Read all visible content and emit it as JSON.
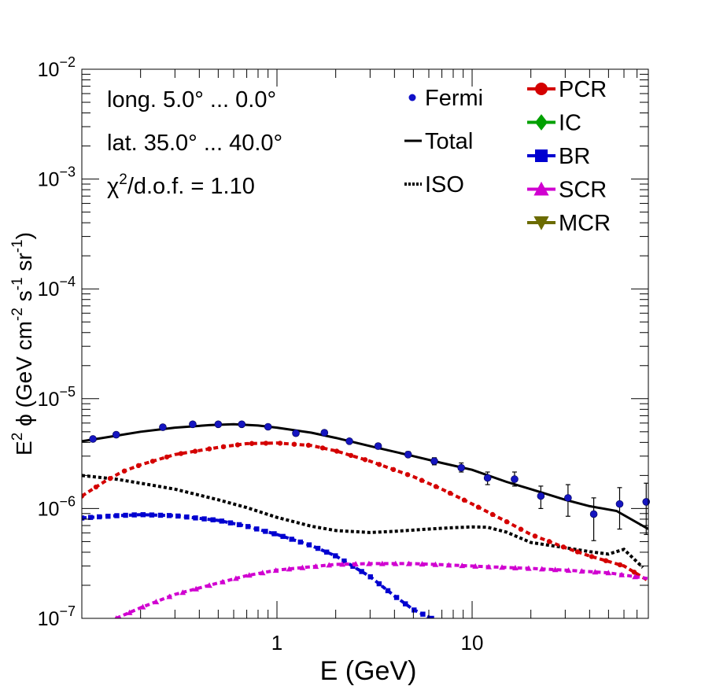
{
  "chart_data": {
    "type": "line",
    "xscale": "log",
    "yscale": "log",
    "xlim": [
      0.1,
      80
    ],
    "ylim": [
      1e-07,
      0.01
    ],
    "xlabel": "E (GeV)",
    "ylabel_main": "E",
    "ylabel_parts": [
      "2",
      " ϕ (GeV cm",
      "-2",
      " s",
      "-1",
      " sr",
      "-1",
      ")"
    ],
    "x_ticks": [
      {
        "value": 1,
        "label": "1"
      },
      {
        "value": 10,
        "label": "10"
      }
    ],
    "y_ticks": [
      {
        "value": 1e-07,
        "base": "10",
        "exp": "−7"
      },
      {
        "value": 1e-06,
        "base": "10",
        "exp": "−6"
      },
      {
        "value": 1e-05,
        "base": "10",
        "exp": "−5"
      },
      {
        "value": 0.0001,
        "base": "10",
        "exp": "−4"
      },
      {
        "value": 0.001,
        "base": "10",
        "exp": "−3"
      },
      {
        "value": 0.01,
        "base": "10",
        "exp": "−2"
      }
    ],
    "annotations": [
      {
        "text": "long. 5.0° ... 0.0°"
      },
      {
        "text": "lat. 35.0° ... 40.0°"
      },
      {
        "text_pre": "χ",
        "sup": "2",
        "text_post": "/d.o.f. = 1.10"
      }
    ],
    "legend_left": [
      {
        "name": "Fermi",
        "style": "dot",
        "color": "#1010c8"
      },
      {
        "name": "Total",
        "style": "line",
        "color": "#000000"
      },
      {
        "name": "ISO",
        "style": "dotted",
        "color": "#000000"
      }
    ],
    "legend_right": [
      {
        "name": "PCR",
        "marker": "circle",
        "color": "#d40000"
      },
      {
        "name": "IC",
        "marker": "diamond",
        "color": "#00a000"
      },
      {
        "name": "BR",
        "marker": "square",
        "color": "#0000d0"
      },
      {
        "name": "SCR",
        "marker": "triangle-up",
        "color": "#d000d0"
      },
      {
        "name": "MCR",
        "marker": "triangle-down",
        "color": "#6b6b00"
      }
    ],
    "fermi": {
      "x": [
        0.114,
        0.15,
        0.26,
        0.37,
        0.5,
        0.66,
        0.9,
        1.25,
        1.75,
        2.35,
        3.3,
        4.7,
        6.4,
        8.8,
        12,
        16.5,
        22.5,
        31,
        42,
        57,
        78
      ],
      "y": [
        4.3e-06,
        4.7e-06,
        5.5e-06,
        5.85e-06,
        5.85e-06,
        5.85e-06,
        5.55e-06,
        4.85e-06,
        4.9e-06,
        4.1e-06,
        3.7e-06,
        3.1e-06,
        2.7e-06,
        2.35e-06,
        1.9e-06,
        1.85e-06,
        1.3e-06,
        1.25e-06,
        8.9e-07,
        1.1e-06,
        1.15e-06
      ],
      "err_lo": [
        4.1e-06,
        4.5e-06,
        5.3e-06,
        5.6e-06,
        5.6e-06,
        5.6e-06,
        5.3e-06,
        4.6e-06,
        4.65e-06,
        3.9e-06,
        3.5e-06,
        2.95e-06,
        2.5e-06,
        2.15e-06,
        1.65e-06,
        1.6e-06,
        1e-06,
        8.5e-07,
        5.1e-07,
        6.5e-07,
        5.8e-07
      ],
      "err_hi": [
        4.5e-06,
        4.9e-06,
        5.7e-06,
        6.1e-06,
        6.1e-06,
        6.1e-06,
        5.8e-06,
        5.1e-06,
        5.15e-06,
        4.3e-06,
        3.9e-06,
        3.3e-06,
        2.9e-06,
        2.6e-06,
        2.15e-06,
        2.15e-06,
        1.6e-06,
        1.65e-06,
        1.25e-06,
        1.55e-06,
        1.7e-06
      ]
    },
    "series": [
      {
        "name": "Total",
        "color": "#000000",
        "style": "solid",
        "x": [
          0.1,
          0.15,
          0.2,
          0.3,
          0.45,
          0.6,
          0.8,
          1.0,
          1.5,
          2.0,
          3.0,
          5.0,
          7.0,
          10,
          15,
          20,
          30,
          40,
          55,
          80
        ],
        "y": [
          4.1e-06,
          4.6e-06,
          5e-06,
          5.45e-06,
          5.75e-06,
          5.85e-06,
          5.7e-06,
          5.45e-06,
          4.9e-06,
          4.4e-06,
          3.7e-06,
          3e-06,
          2.6e-06,
          2.25e-06,
          1.75e-06,
          1.5e-06,
          1.2e-06,
          1.05e-06,
          9.5e-07,
          6.5e-07
        ]
      },
      {
        "name": "ISO",
        "color": "#000000",
        "style": "dotted",
        "x": [
          0.1,
          0.15,
          0.2,
          0.3,
          0.5,
          0.7,
          1.0,
          1.5,
          2.0,
          3.0,
          4.0,
          6.0,
          8.0,
          10,
          12,
          15,
          20,
          30,
          40,
          50,
          60,
          75
        ],
        "y": [
          2e-06,
          1.85e-06,
          1.7e-06,
          1.5e-06,
          1.2e-06,
          1.02e-06,
          8.3e-07,
          6.9e-07,
          6.3e-07,
          6.05e-07,
          6.2e-07,
          6.5e-07,
          6.7e-07,
          6.8e-07,
          6.75e-07,
          6.1e-07,
          4.9e-07,
          4.4e-07,
          4.05e-07,
          3.85e-07,
          4.25e-07,
          2.9e-07
        ]
      },
      {
        "name": "PCR",
        "color": "#d40000",
        "style": "dashed",
        "marker": "circle",
        "x": [
          0.1,
          0.13,
          0.16,
          0.2,
          0.3,
          0.5,
          0.7,
          1.0,
          1.5,
          2.0,
          3.0,
          5.0,
          7.0,
          10,
          15,
          20,
          30,
          40,
          60,
          80
        ],
        "y": [
          1.3e-06,
          1.75e-06,
          2.15e-06,
          2.5e-06,
          3.1e-06,
          3.6e-06,
          3.9e-06,
          3.95e-06,
          3.75e-06,
          3.35e-06,
          2.7e-06,
          1.95e-06,
          1.5e-06,
          1.1e-06,
          7.6e-07,
          5.8e-07,
          4.4e-07,
          3.7e-07,
          3e-07,
          2.2e-07
        ]
      },
      {
        "name": "BR",
        "color": "#0000d0",
        "style": "dashed",
        "marker": "square",
        "x": [
          0.1,
          0.15,
          0.2,
          0.3,
          0.5,
          0.7,
          1.0,
          1.5,
          2.0,
          3.0,
          4.0,
          5.0,
          6.2
        ],
        "y": [
          8.2e-07,
          8.6e-07,
          8.8e-07,
          8.6e-07,
          7.8e-07,
          6.9e-07,
          5.8e-07,
          4.6e-07,
          3.7e-07,
          2.4e-07,
          1.6e-07,
          1.2e-07,
          1e-07
        ]
      },
      {
        "name": "SCR",
        "color": "#d000d0",
        "style": "dashed",
        "marker": "triangle-up",
        "x": [
          0.15,
          0.2,
          0.3,
          0.5,
          0.7,
          1.0,
          1.5,
          2.0,
          3.0,
          5.0,
          8.0,
          12,
          20,
          30,
          50,
          80
        ],
        "y": [
          1e-07,
          1.25e-07,
          1.65e-07,
          2.1e-07,
          2.45e-07,
          2.75e-07,
          2.95e-07,
          3.1e-07,
          3.15e-07,
          3.15e-07,
          3.05e-07,
          2.95e-07,
          2.85e-07,
          2.75e-07,
          2.6e-07,
          2.3e-07
        ]
      }
    ]
  }
}
